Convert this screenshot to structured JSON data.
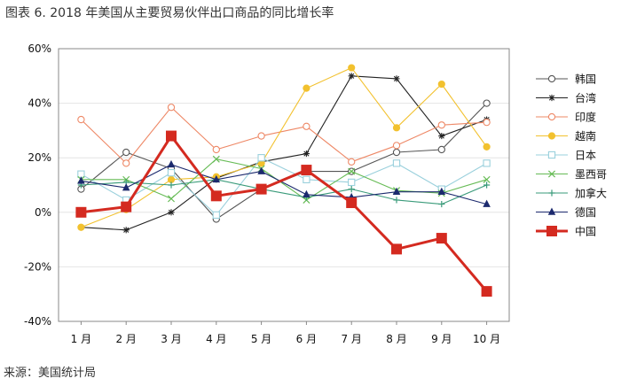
{
  "title": "图表 6. 2018 年美国从主要贸易伙伴出口商品的同比增长率",
  "source": "来源：美国统计局",
  "chart_data": {
    "type": "line",
    "categories": [
      "1 月",
      "2 月",
      "3 月",
      "4 月",
      "5 月",
      "6 月",
      "7 月",
      "8 月",
      "9 月",
      "10 月"
    ],
    "ylim": [
      -40,
      60
    ],
    "yticks": [
      -40,
      -20,
      0,
      20,
      40,
      60
    ],
    "ytick_labels": [
      "-40%",
      "-20%",
      "0%",
      "20%",
      "40%",
      "60%"
    ],
    "grid": "horizontal",
    "legend_position": "right",
    "series": [
      {
        "name": "韩国",
        "color": "#555555",
        "marker": "circle-open",
        "values": [
          8.5,
          22,
          16,
          -2.5,
          8.5,
          15,
          15,
          22,
          23,
          40
        ]
      },
      {
        "name": "台湾",
        "color": "#222222",
        "marker": "star",
        "values": [
          -5.5,
          -6.5,
          0,
          12.5,
          18.5,
          21.5,
          50,
          49,
          28,
          34
        ]
      },
      {
        "name": "印度",
        "color": "#ee8866",
        "marker": "circle-open",
        "values": [
          34,
          18,
          38.5,
          23,
          28,
          31.5,
          18.5,
          24.5,
          32,
          33
        ]
      },
      {
        "name": "越南",
        "color": "#f2c12e",
        "marker": "circle-filled",
        "values": [
          -5.5,
          1,
          12,
          13,
          18,
          45.5,
          53,
          31,
          47,
          24
        ]
      },
      {
        "name": "日本",
        "color": "#9ad0dc",
        "marker": "square-open",
        "values": [
          14,
          4.5,
          14.5,
          -1,
          20,
          12,
          11,
          18,
          8.5,
          18
        ]
      },
      {
        "name": "墨西哥",
        "color": "#66bb55",
        "marker": "x",
        "values": [
          12,
          12,
          5,
          19.5,
          16,
          4.5,
          15,
          8,
          7,
          12
        ]
      },
      {
        "name": "加拿大",
        "color": "#3a9b7a",
        "marker": "plus",
        "values": [
          10,
          11,
          10,
          12,
          8.5,
          5.5,
          8.5,
          4.5,
          3,
          10
        ]
      },
      {
        "name": "德国",
        "color": "#1c2a6e",
        "marker": "triangle-filled",
        "values": [
          11.5,
          9,
          17.5,
          12,
          15,
          6.5,
          5.5,
          7.5,
          7.5,
          3
        ]
      },
      {
        "name": "中国",
        "color": "#d42a20",
        "marker": "square-filled",
        "values": [
          0,
          2,
          28,
          6,
          8.5,
          15.5,
          3.5,
          -13.5,
          -9.5,
          -29
        ]
      }
    ]
  }
}
